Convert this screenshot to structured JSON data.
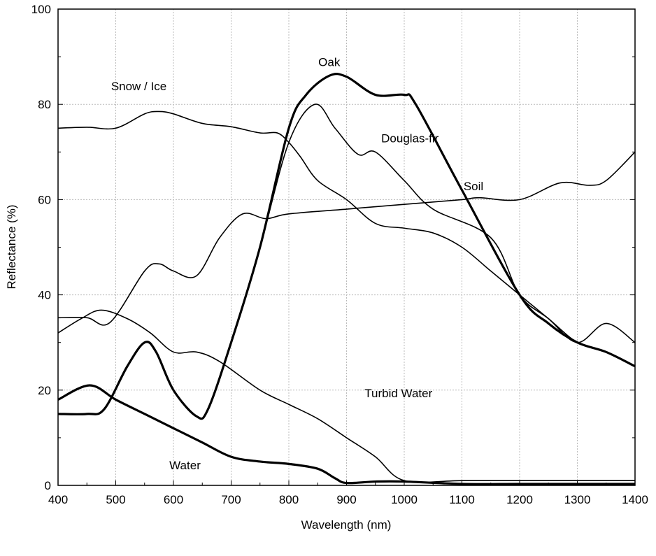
{
  "chart_data": {
    "type": "line",
    "title": "",
    "xlabel": "Wavelength (nm)",
    "ylabel": "Reflectance (%)",
    "xlim": [
      400,
      1400
    ],
    "ylim": [
      0,
      100
    ],
    "xticks": [
      400,
      500,
      600,
      700,
      800,
      900,
      1000,
      1100,
      1200,
      1300,
      1400
    ],
    "yticks": [
      0,
      20,
      40,
      60,
      80,
      100
    ],
    "grid": true,
    "legend": "inline labels",
    "color": "#000000",
    "series": [
      {
        "name": "Snow / Ice",
        "thick": false,
        "label_at": [
          540,
          83
        ],
        "x": [
          400,
          450,
          500,
          550,
          575,
          600,
          650,
          700,
          750,
          780,
          800,
          820,
          850,
          900,
          950,
          1000,
          1050,
          1100,
          1150,
          1200,
          1250,
          1300,
          1350,
          1400
        ],
        "y": [
          75,
          75.2,
          75,
          78,
          78.5,
          78,
          76,
          75.3,
          74,
          74,
          72,
          69,
          64,
          60,
          55,
          54,
          53,
          50,
          45,
          40,
          35,
          30,
          28,
          25
        ]
      },
      {
        "name": "Soil",
        "thick": false,
        "label_at": [
          1120,
          62
        ],
        "x": [
          400,
          450,
          490,
          550,
          575,
          600,
          640,
          680,
          720,
          760,
          800,
          900,
          1000,
          1100,
          1130,
          1200,
          1270,
          1320,
          1350,
          1400
        ],
        "y": [
          35.2,
          35.2,
          34.2,
          45,
          46.5,
          45,
          44,
          52,
          57,
          56,
          57,
          58,
          59,
          60,
          60.4,
          60,
          63.5,
          63,
          64,
          70
        ]
      },
      {
        "name": "Oak",
        "thick": true,
        "label_at": [
          870,
          88
        ],
        "x": [
          400,
          450,
          480,
          520,
          550,
          570,
          600,
          640,
          660,
          700,
          750,
          800,
          830,
          870,
          900,
          950,
          1000,
          1020,
          1100,
          1200,
          1250,
          1300,
          1350,
          1400
        ],
        "y": [
          15,
          15,
          16,
          25,
          30,
          28,
          20,
          14.5,
          16,
          30,
          50,
          75,
          82,
          86,
          85.8,
          82,
          82,
          80,
          62,
          40,
          34,
          30,
          28,
          25
        ]
      },
      {
        "name": "Douglas-fir",
        "thick": false,
        "label_at": [
          1010,
          72
        ],
        "x": [
          700,
          750,
          800,
          845,
          880,
          920,
          950,
          1000,
          1050,
          1150,
          1200,
          1250,
          1300,
          1350,
          1400
        ],
        "y": [
          30,
          50,
          72,
          80,
          75,
          69.5,
          70,
          64,
          58,
          52,
          40,
          35,
          30,
          34,
          30
        ]
      },
      {
        "name": "Turbid Water",
        "thick": false,
        "label_at": [
          990,
          18.5
        ],
        "x": [
          400,
          440,
          475,
          520,
          560,
          600,
          640,
          680,
          750,
          800,
          850,
          900,
          950,
          1000,
          1100,
          1200,
          1300,
          1400
        ],
        "y": [
          32,
          35,
          36.8,
          35,
          32,
          28,
          28,
          26,
          20,
          17,
          14,
          10,
          6,
          1,
          1,
          1,
          1,
          1
        ]
      },
      {
        "name": "Water",
        "thick": true,
        "label_at": [
          620,
          3.4
        ],
        "x": [
          400,
          455,
          500,
          550,
          600,
          650,
          700,
          750,
          800,
          850,
          880,
          900,
          950,
          1000,
          1100,
          1200,
          1300,
          1400
        ],
        "y": [
          18,
          21,
          18,
          15,
          12,
          9,
          6,
          5,
          4.5,
          3.5,
          1.5,
          0.5,
          0.8,
          0.8,
          0.3,
          0.3,
          0.3,
          0.3
        ]
      }
    ]
  }
}
